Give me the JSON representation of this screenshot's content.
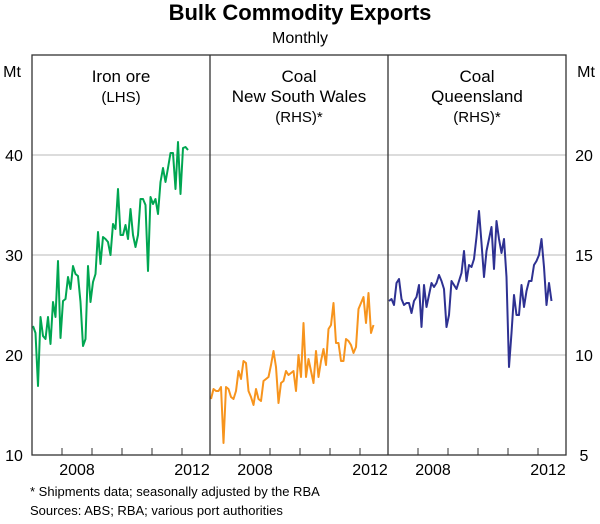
{
  "title": "Bulk Commodity Exports",
  "subtitle": "Monthly",
  "footnotes": [
    "* Shipments data; seasonally adjusted by the RBA",
    "Sources: ABS; RBA; various port authorities"
  ],
  "chart_data": {
    "type": "line",
    "title": "Bulk Commodity Exports",
    "subtitle": "Monthly",
    "left_axis": {
      "unit": "Mt",
      "ticks": [
        10,
        20,
        30,
        40
      ],
      "range": [
        10,
        50
      ]
    },
    "right_axis": {
      "unit": "Mt",
      "ticks": [
        5,
        10,
        15,
        20
      ],
      "range": [
        5,
        25
      ]
    },
    "x_range": [
      "2007-01",
      "2012-12"
    ],
    "x_tick_labels": [
      "2008",
      "2012"
    ],
    "grid": true,
    "panels": [
      {
        "title": [
          "Iron ore",
          "(LHS)"
        ],
        "axis": "left",
        "color": "#00a651",
        "start": "2007-01",
        "values": [
          22.9,
          22.2,
          16.9,
          23.8,
          21.9,
          21.6,
          23.8,
          21.1,
          25.3,
          23.8,
          29.4,
          21.7,
          25.4,
          25.6,
          27.8,
          26.6,
          28.9,
          28.1,
          27.9,
          25.3,
          20.9,
          21.6,
          28.9,
          25.3,
          27.3,
          28.1,
          32.3,
          29.1,
          31.8,
          31.6,
          31.3,
          30.0,
          33.1,
          32.6,
          36.6,
          32.0,
          32.0,
          33.0,
          31.6,
          34.6,
          32.0,
          30.8,
          32.0,
          35.6,
          35.6,
          35.0,
          28.4,
          35.8,
          35.1,
          35.6,
          34.1,
          37.3,
          38.7,
          37.3,
          38.7,
          40.2,
          40.2,
          36.6,
          41.3,
          36.1,
          40.7,
          40.8,
          40.5
        ]
      },
      {
        "title": [
          "Coal",
          "New South Wales",
          "(RHS)*"
        ],
        "axis": "right",
        "color": "#f7941d",
        "start": "2007-01",
        "values": [
          7.8,
          8.3,
          8.2,
          8.2,
          8.4,
          5.6,
          8.4,
          8.3,
          7.9,
          7.8,
          8.2,
          9.2,
          8.8,
          9.7,
          9.6,
          8.2,
          7.9,
          7.5,
          8.3,
          7.8,
          7.7,
          8.7,
          8.8,
          8.9,
          9.5,
          10.2,
          9.4,
          7.6,
          8.6,
          8.7,
          9.2,
          9.0,
          9.1,
          9.2,
          8.2,
          10.0,
          8.9,
          11.6,
          8.9,
          9.8,
          9.2,
          8.6,
          10.2,
          8.9,
          9.7,
          10.3,
          9.5,
          11.3,
          11.5,
          12.6,
          10.6,
          10.6,
          9.7,
          9.7,
          10.8,
          10.7,
          10.5,
          10.1,
          10.4,
          12.3,
          12.6,
          12.9,
          11.6,
          13.1,
          11.1,
          11.5
        ]
      },
      {
        "title": [
          "Coal",
          "Queensland",
          "(RHS)*"
        ],
        "axis": "right",
        "color": "#2e3192",
        "start": "2007-01",
        "values": [
          12.7,
          12.8,
          12.5,
          13.6,
          13.8,
          12.8,
          12.5,
          12.6,
          12.6,
          12.1,
          12.7,
          12.9,
          13.5,
          11.4,
          13.5,
          12.4,
          13.0,
          13.6,
          13.4,
          13.6,
          14.0,
          13.7,
          13.3,
          11.4,
          12.0,
          13.7,
          13.5,
          13.3,
          13.7,
          14.1,
          15.2,
          13.7,
          14.5,
          14.4,
          14.8,
          15.9,
          17.2,
          15.6,
          13.9,
          15.2,
          15.8,
          16.4,
          14.3,
          16.7,
          15.8,
          15.1,
          15.8,
          13.9,
          9.4,
          11.1,
          13.0,
          12.0,
          12.0,
          13.5,
          12.4,
          13.2,
          13.7,
          13.7,
          14.5,
          14.7,
          15.0,
          15.8,
          14.4,
          12.5,
          13.6,
          12.7
        ]
      }
    ]
  }
}
